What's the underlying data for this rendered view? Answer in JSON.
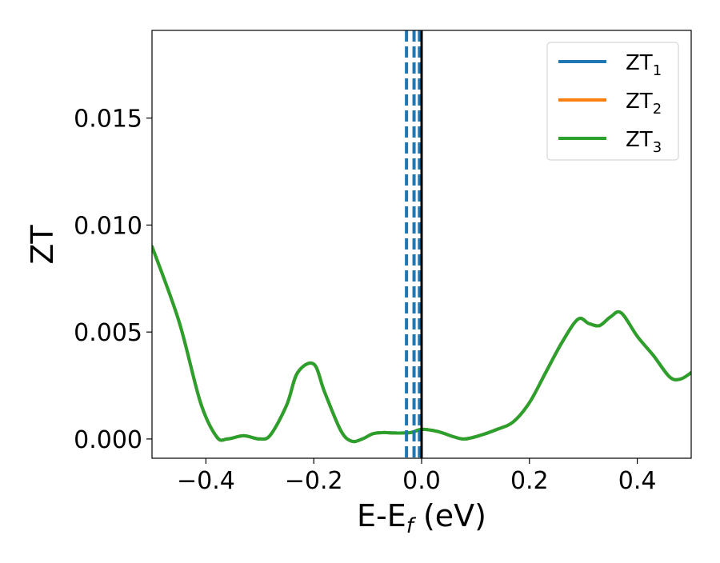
{
  "chart_data": {
    "type": "line",
    "title": "",
    "xlabel": {
      "main": "E-E",
      "sub": "f",
      "suffix": " (eV)"
    },
    "ylabel": "ZT",
    "xlim": [
      -0.5,
      0.5
    ],
    "ylim": [
      -0.0009,
      0.0191
    ],
    "xticks": [
      -0.4,
      -0.2,
      0.0,
      0.2,
      0.4
    ],
    "xtick_labels": [
      "−0.4",
      "−0.2",
      "0.0",
      "0.2",
      "0.4"
    ],
    "yticks": [
      0.0,
      0.005,
      0.01,
      0.015
    ],
    "ytick_labels": [
      "0.000",
      "0.005",
      "0.010",
      "0.015"
    ],
    "grid": false,
    "legend_position": "top-right",
    "series": [
      {
        "name": "ZT",
        "name_sub": "1",
        "color": "#1f77b4",
        "hidden_by_overlap": true,
        "x": [
          -0.5,
          -0.45,
          -0.41,
          -0.38,
          -0.36,
          -0.33,
          -0.3,
          -0.28,
          -0.25,
          -0.23,
          -0.2,
          -0.18,
          -0.15,
          -0.13,
          -0.11,
          -0.09,
          -0.07,
          -0.05,
          -0.02,
          0.0,
          0.03,
          0.06,
          0.08,
          0.11,
          0.14,
          0.17,
          0.2,
          0.23,
          0.26,
          0.29,
          0.31,
          0.33,
          0.35,
          0.37,
          0.4,
          0.43,
          0.46,
          0.48,
          0.5
        ],
        "y": [
          0.009,
          0.0055,
          0.0017,
          0.0001,
          0.0,
          0.00015,
          0.0,
          0.0002,
          0.0016,
          0.0031,
          0.0035,
          0.0022,
          0.0004,
          -0.0001,
          0.0,
          0.00025,
          0.0003,
          0.00028,
          0.0003,
          0.00045,
          0.00035,
          0.0001,
          0.0,
          0.00018,
          0.00045,
          0.0008,
          0.0017,
          0.0031,
          0.0045,
          0.0056,
          0.0054,
          0.0053,
          0.0057,
          0.0059,
          0.0048,
          0.0039,
          0.0029,
          0.0028,
          0.0031
        ]
      },
      {
        "name": "ZT",
        "name_sub": "2",
        "color": "#ff7f0e",
        "hidden_by_overlap": true,
        "x": [
          -0.5,
          -0.45,
          -0.41,
          -0.38,
          -0.36,
          -0.33,
          -0.3,
          -0.28,
          -0.25,
          -0.23,
          -0.2,
          -0.18,
          -0.15,
          -0.13,
          -0.11,
          -0.09,
          -0.07,
          -0.05,
          -0.02,
          0.0,
          0.03,
          0.06,
          0.08,
          0.11,
          0.14,
          0.17,
          0.2,
          0.23,
          0.26,
          0.29,
          0.31,
          0.33,
          0.35,
          0.37,
          0.4,
          0.43,
          0.46,
          0.48,
          0.5
        ],
        "y": [
          0.009,
          0.0055,
          0.0017,
          0.0001,
          0.0,
          0.00015,
          0.0,
          0.0002,
          0.0016,
          0.0031,
          0.0035,
          0.0022,
          0.0004,
          -0.0001,
          0.0,
          0.00025,
          0.0003,
          0.00028,
          0.0003,
          0.00045,
          0.00035,
          0.0001,
          0.0,
          0.00018,
          0.00045,
          0.0008,
          0.0017,
          0.0031,
          0.0045,
          0.0056,
          0.0054,
          0.0053,
          0.0057,
          0.0059,
          0.0048,
          0.0039,
          0.0029,
          0.0028,
          0.0031
        ]
      },
      {
        "name": "ZT",
        "name_sub": "3",
        "color": "#2ca02c",
        "x": [
          -0.5,
          -0.45,
          -0.41,
          -0.38,
          -0.36,
          -0.33,
          -0.3,
          -0.28,
          -0.25,
          -0.23,
          -0.2,
          -0.18,
          -0.15,
          -0.13,
          -0.11,
          -0.09,
          -0.07,
          -0.05,
          -0.02,
          0.0,
          0.03,
          0.06,
          0.08,
          0.11,
          0.14,
          0.17,
          0.2,
          0.23,
          0.26,
          0.29,
          0.31,
          0.33,
          0.35,
          0.37,
          0.4,
          0.43,
          0.46,
          0.48,
          0.5
        ],
        "y": [
          0.009,
          0.0055,
          0.0017,
          0.0001,
          0.0,
          0.00015,
          0.0,
          0.0002,
          0.0016,
          0.0031,
          0.0035,
          0.0022,
          0.0004,
          -0.0001,
          0.0,
          0.00025,
          0.0003,
          0.00028,
          0.0003,
          0.00045,
          0.00035,
          0.0001,
          0.0,
          0.00018,
          0.00045,
          0.0008,
          0.0017,
          0.0031,
          0.0045,
          0.0056,
          0.0054,
          0.0053,
          0.0057,
          0.0059,
          0.0048,
          0.0039,
          0.0029,
          0.0028,
          0.0031
        ]
      }
    ],
    "vlines": [
      {
        "x": -0.028,
        "color": "#1f77b4",
        "style": "dashed"
      },
      {
        "x": -0.014,
        "color": "#1f77b4",
        "style": "dashed"
      },
      {
        "x": -0.004,
        "color": "#1f77b4",
        "style": "dashed"
      },
      {
        "x": 0.0,
        "color": "#000000",
        "style": "solid"
      }
    ]
  }
}
